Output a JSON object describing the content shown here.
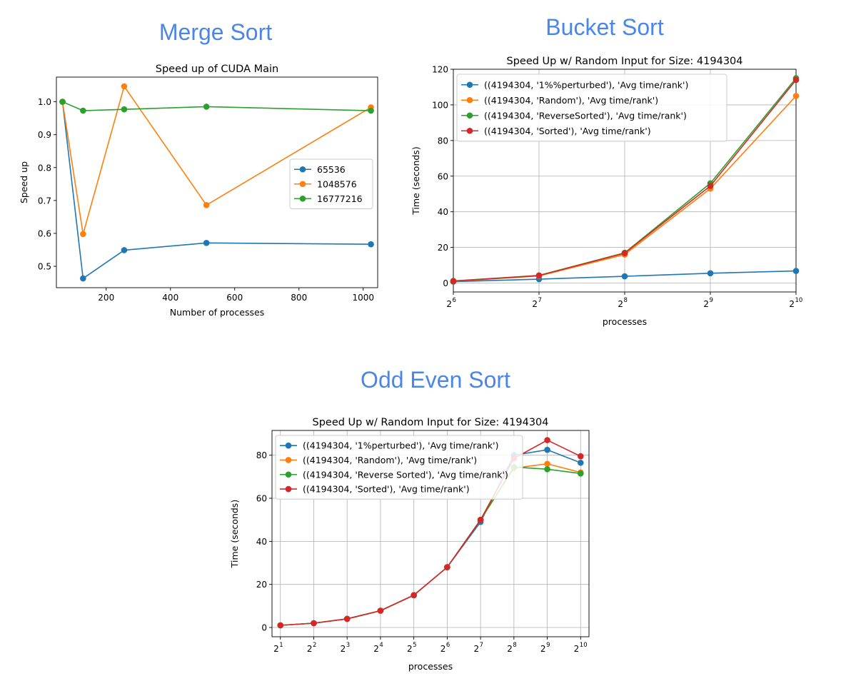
{
  "headings": [
    "Merge Sort",
    "Bucket Sort",
    "Odd Even Sort"
  ],
  "chart_data": [
    {
      "type": "line",
      "title": "Speed up of CUDA Main",
      "xlabel": "Number of processes",
      "ylabel": "Speed up",
      "xscale": "linear",
      "xlim": [
        45,
        1045
      ],
      "ylim": [
        0.435,
        1.075
      ],
      "xticks": [
        200,
        400,
        600,
        800,
        1000
      ],
      "xticklabels": [
        "200",
        "400",
        "600",
        "800",
        "1000"
      ],
      "yticks": [
        0.5,
        0.6,
        0.7,
        0.8,
        0.9,
        1.0
      ],
      "yticklabels": [
        "0.5",
        "0.6",
        "0.7",
        "0.8",
        "0.9",
        "1.0"
      ],
      "grid": false,
      "legend_position": "center-right",
      "x": [
        64,
        128,
        256,
        512,
        1024
      ],
      "series": [
        {
          "name": "65536",
          "color": "#1f77b4",
          "values": [
            1.0,
            0.463,
            0.549,
            0.571,
            0.567
          ]
        },
        {
          "name": "1048576",
          "color": "#ff7f0e",
          "values": [
            1.0,
            0.598,
            1.047,
            0.686,
            0.983
          ]
        },
        {
          "name": "16777216",
          "color": "#2ca02c",
          "values": [
            1.0,
            0.973,
            0.977,
            0.985,
            0.973
          ]
        }
      ]
    },
    {
      "type": "line",
      "title": "Speed Up w/ Random Input for Size: 4194304",
      "xlabel": "processes",
      "ylabel": "Time (seconds)",
      "xscale": "log2",
      "xlim": [
        64,
        1024
      ],
      "ylim": [
        -5,
        120
      ],
      "xticks": [
        64,
        128,
        256,
        512,
        1024
      ],
      "xticklabels": [
        "2",
        "2",
        "2",
        "2",
        "2"
      ],
      "xtickexponents": [
        "6",
        "7",
        "8",
        "9",
        "10"
      ],
      "yticks": [
        0,
        20,
        40,
        60,
        80,
        100,
        120
      ],
      "yticklabels": [
        "0",
        "20",
        "40",
        "60",
        "80",
        "100",
        "120"
      ],
      "grid": true,
      "legend_position": "top-left",
      "x": [
        64,
        128,
        256,
        512,
        1024
      ],
      "series": [
        {
          "name": "((4194304, '1%%perturbed'), 'Avg time/rank')",
          "color": "#1f77b4",
          "values": [
            0.8,
            2.2,
            3.8,
            5.5,
            6.8
          ]
        },
        {
          "name": "((4194304, 'Random'), 'Avg time/rank')",
          "color": "#ff7f0e",
          "values": [
            1.0,
            4.0,
            16.0,
            53.0,
            105.0
          ]
        },
        {
          "name": "((4194304, 'ReverseSorted'), 'Avg time/rank')",
          "color": "#2ca02c",
          "values": [
            1.2,
            4.3,
            17.0,
            56.0,
            115.0
          ]
        },
        {
          "name": "((4194304, 'Sorted'), 'Avg time/rank')",
          "color": "#d62728",
          "values": [
            1.1,
            4.2,
            16.8,
            54.5,
            114.0
          ]
        }
      ]
    },
    {
      "type": "line",
      "title": "Speed Up w/ Random Input for Size: 4194304",
      "xlabel": "processes",
      "ylabel": "Time (seconds)",
      "xscale": "log2",
      "xlim": [
        1.68,
        1218
      ],
      "ylim": [
        -4.3,
        91.5
      ],
      "xticks": [
        2,
        4,
        8,
        16,
        32,
        64,
        128,
        256,
        512,
        1024
      ],
      "xticklabels": [
        "2",
        "2",
        "2",
        "2",
        "2",
        "2",
        "2",
        "2",
        "2",
        "2"
      ],
      "xtickexponents": [
        "1",
        "2",
        "3",
        "4",
        "5",
        "6",
        "7",
        "8",
        "9",
        "10"
      ],
      "yticks": [
        0,
        20,
        40,
        60,
        80
      ],
      "yticklabels": [
        "0",
        "20",
        "40",
        "60",
        "80"
      ],
      "grid": true,
      "legend_position": "top-left",
      "x": [
        2,
        4,
        8,
        16,
        32,
        64,
        128,
        256,
        512,
        1024
      ],
      "series": [
        {
          "name": "((4194304, '1%perturbed'), 'Avg time/rank')",
          "color": "#1f77b4",
          "values": [
            1.0,
            2.0,
            4.0,
            7.8,
            15.0,
            28.0,
            49.0,
            80.0,
            82.5,
            76.5
          ]
        },
        {
          "name": "((4194304, 'Random'), 'Avg time/rank')",
          "color": "#ff7f0e",
          "values": [
            1.0,
            2.0,
            4.0,
            7.8,
            15.0,
            28.0,
            50.0,
            74.0,
            76.0,
            72.0
          ]
        },
        {
          "name": "((4194304, 'Reverse Sorted'), 'Avg time/rank')",
          "color": "#2ca02c",
          "values": [
            1.0,
            2.0,
            4.0,
            7.8,
            15.0,
            28.0,
            50.0,
            74.5,
            73.5,
            71.5
          ]
        },
        {
          "name": "((4194304, 'Sorted'), 'Avg time/rank')",
          "color": "#d62728",
          "values": [
            1.0,
            2.0,
            4.0,
            7.8,
            15.0,
            28.0,
            50.0,
            78.5,
            87.0,
            79.5
          ]
        }
      ]
    }
  ]
}
